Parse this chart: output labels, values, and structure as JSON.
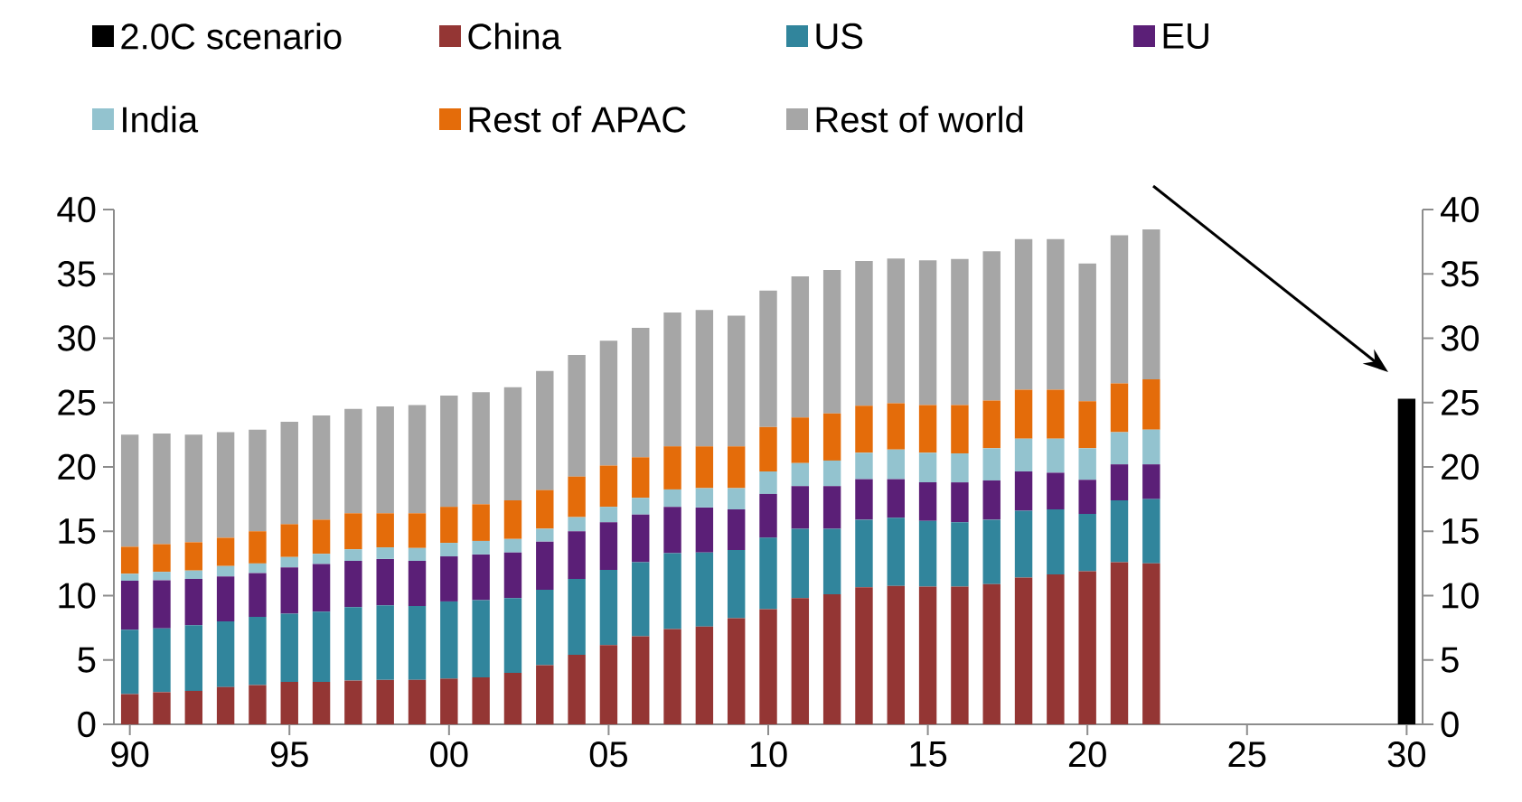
{
  "chart_data": {
    "type": "bar",
    "stacked": true,
    "legend": "top",
    "x": [
      1990,
      1991,
      1992,
      1993,
      1994,
      1995,
      1996,
      1997,
      1998,
      1999,
      2000,
      2001,
      2002,
      2003,
      2004,
      2005,
      2006,
      2007,
      2008,
      2009,
      2010,
      2011,
      2012,
      2013,
      2014,
      2015,
      2016,
      2017,
      2018,
      2019,
      2020,
      2021,
      2022
    ],
    "series": [
      {
        "name": "2.0C scenario",
        "color": "#000000",
        "axis": "y2",
        "x": [
          2030
        ],
        "values": [
          25.3
        ]
      },
      {
        "name": "China",
        "color": "#943634",
        "values": [
          2.35,
          2.5,
          2.6,
          2.9,
          3.05,
          3.3,
          3.3,
          3.4,
          3.45,
          3.45,
          3.55,
          3.65,
          4.0,
          4.6,
          5.4,
          6.15,
          6.85,
          7.4,
          7.6,
          8.25,
          8.95,
          9.8,
          10.1,
          10.65,
          10.75,
          10.7,
          10.7,
          10.9,
          11.4,
          11.65,
          11.9,
          12.6,
          12.5
        ]
      },
      {
        "name": "US",
        "color": "#31859c",
        "values": [
          5.0,
          4.95,
          5.1,
          5.1,
          5.3,
          5.3,
          5.45,
          5.7,
          5.8,
          5.75,
          6.0,
          6.0,
          5.8,
          5.85,
          5.9,
          5.85,
          5.75,
          5.9,
          5.75,
          5.3,
          5.55,
          5.4,
          5.1,
          5.25,
          5.3,
          5.1,
          5.0,
          5.0,
          5.2,
          5.05,
          4.45,
          4.8,
          5.0
        ]
      },
      {
        "name": "EU",
        "color": "#5b1f77",
        "values": [
          3.8,
          3.75,
          3.6,
          3.5,
          3.4,
          3.6,
          3.7,
          3.6,
          3.6,
          3.5,
          3.5,
          3.55,
          3.55,
          3.75,
          3.7,
          3.7,
          3.7,
          3.6,
          3.5,
          3.15,
          3.4,
          3.3,
          3.3,
          3.15,
          3.0,
          3.0,
          3.1,
          3.05,
          3.05,
          2.85,
          2.65,
          2.8,
          2.7
        ]
      },
      {
        "name": "India",
        "color": "#93c3cf",
        "values": [
          0.55,
          0.65,
          0.65,
          0.8,
          0.75,
          0.8,
          0.8,
          0.9,
          0.9,
          1.0,
          1.05,
          1.05,
          1.05,
          1.0,
          1.1,
          1.2,
          1.3,
          1.35,
          1.5,
          1.65,
          1.75,
          1.8,
          2.0,
          2.05,
          2.3,
          2.3,
          2.25,
          2.5,
          2.55,
          2.65,
          2.45,
          2.5,
          2.7
        ]
      },
      {
        "name": "Rest of APAC",
        "color": "#e46c0a",
        "values": [
          2.1,
          2.15,
          2.2,
          2.2,
          2.5,
          2.55,
          2.65,
          2.8,
          2.65,
          2.7,
          2.8,
          2.85,
          3.0,
          3.0,
          3.15,
          3.2,
          3.15,
          3.35,
          3.25,
          3.25,
          3.45,
          3.55,
          3.65,
          3.65,
          3.6,
          3.7,
          3.75,
          3.7,
          3.8,
          3.8,
          3.65,
          3.8,
          3.9
        ]
      },
      {
        "name": "Rest of world",
        "color": "#a6a6a6",
        "values": [
          8.7,
          8.6,
          8.35,
          8.2,
          7.9,
          7.95,
          8.1,
          8.1,
          8.3,
          8.4,
          8.65,
          8.7,
          8.8,
          9.25,
          9.45,
          9.7,
          10.05,
          10.4,
          10.6,
          10.15,
          10.6,
          10.95,
          11.15,
          11.25,
          11.25,
          11.25,
          11.35,
          11.6,
          11.7,
          11.7,
          10.7,
          11.5,
          11.65
        ]
      }
    ],
    "xlim": [
      1989.5,
      2030.5
    ],
    "xticks": [
      {
        "value": 1990,
        "label": "90"
      },
      {
        "value": 1995,
        "label": "95"
      },
      {
        "value": 2000,
        "label": "00"
      },
      {
        "value": 2005,
        "label": "05"
      },
      {
        "value": 2010,
        "label": "10"
      },
      {
        "value": 2015,
        "label": "15"
      },
      {
        "value": 2020,
        "label": "20"
      },
      {
        "value": 2025,
        "label": "25"
      },
      {
        "value": 2030,
        "label": "30"
      }
    ],
    "ylim": [
      0,
      40
    ],
    "yticks": [
      0,
      5,
      10,
      15,
      20,
      25,
      30,
      35,
      40
    ],
    "y2lim": [
      0,
      40
    ],
    "y2ticks": [
      0,
      5,
      10,
      15,
      20,
      25,
      30,
      35,
      40
    ]
  }
}
